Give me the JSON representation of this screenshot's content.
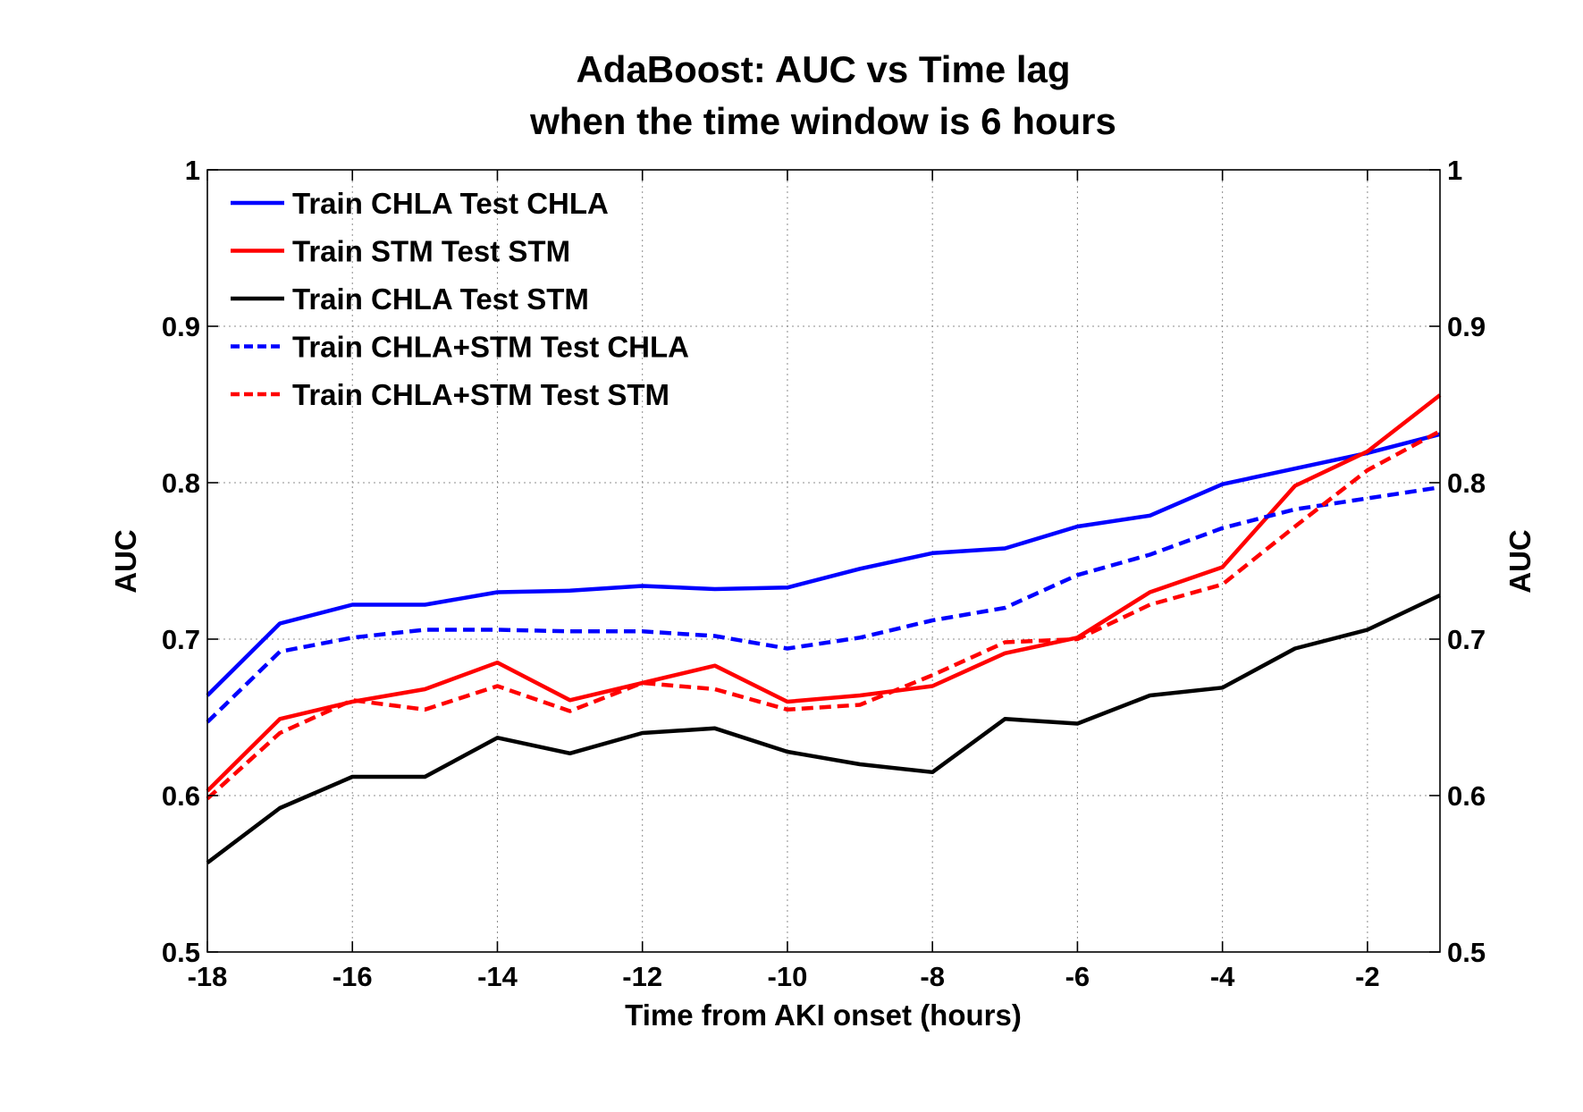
{
  "chart_data": {
    "type": "line",
    "title": [
      "AdaBoost: AUC vs Time lag",
      "when the time window is 6 hours"
    ],
    "xlabel": "Time from AKI onset (hours)",
    "ylabel": "AUC",
    "y2label": "AUC",
    "xlim": [
      -18,
      -1
    ],
    "ylim": [
      0.5,
      1
    ],
    "xticks": [
      -18,
      -16,
      -14,
      -12,
      -10,
      -8,
      -6,
      -4,
      -2
    ],
    "yticks": [
      0.5,
      0.6,
      0.7,
      0.8,
      0.9,
      1
    ],
    "ytick_labels": [
      "0.5",
      "0.6",
      "0.7",
      "0.8",
      "0.9",
      "1"
    ],
    "grid": true,
    "legend_position": "top-left",
    "x": [
      -18,
      -17,
      -16,
      -15,
      -14,
      -13,
      -12,
      -11,
      -10,
      -9,
      -8,
      -7,
      -6,
      -5,
      -4,
      -3,
      -2,
      -1
    ],
    "series": [
      {
        "name": "Train CHLA Test CHLA",
        "color": "#0000ff",
        "style": "solid",
        "values": [
          0.664,
          0.71,
          0.722,
          0.722,
          0.73,
          0.731,
          0.734,
          0.732,
          0.733,
          0.745,
          0.755,
          0.758,
          0.772,
          0.779,
          0.799,
          0.809,
          0.819,
          0.831
        ]
      },
      {
        "name": "Train STM Test STM",
        "color": "#ff0000",
        "style": "solid",
        "values": [
          0.603,
          0.649,
          0.66,
          0.668,
          0.685,
          0.661,
          0.672,
          0.683,
          0.66,
          0.664,
          0.67,
          0.691,
          0.701,
          0.73,
          0.746,
          0.798,
          0.82,
          0.856
        ]
      },
      {
        "name": "Train CHLA Test STM",
        "color": "#000000",
        "style": "solid",
        "values": [
          0.557,
          0.592,
          0.612,
          0.612,
          0.637,
          0.627,
          0.64,
          0.643,
          0.628,
          0.62,
          0.615,
          0.649,
          0.646,
          0.664,
          0.669,
          0.694,
          0.706,
          0.728
        ]
      },
      {
        "name": "Train CHLA+STM Test CHLA",
        "color": "#0000ff",
        "style": "dashed",
        "values": [
          0.647,
          0.692,
          0.701,
          0.706,
          0.706,
          0.705,
          0.705,
          0.702,
          0.694,
          0.701,
          0.712,
          0.72,
          0.741,
          0.754,
          0.771,
          0.783,
          0.79,
          0.797
        ]
      },
      {
        "name": "Train CHLA+STM Test STM",
        "color": "#ff0000",
        "style": "dashed",
        "values": [
          0.598,
          0.64,
          0.661,
          0.655,
          0.67,
          0.654,
          0.672,
          0.668,
          0.655,
          0.658,
          0.677,
          0.698,
          0.7,
          0.722,
          0.735,
          0.772,
          0.808,
          0.833
        ]
      }
    ]
  }
}
